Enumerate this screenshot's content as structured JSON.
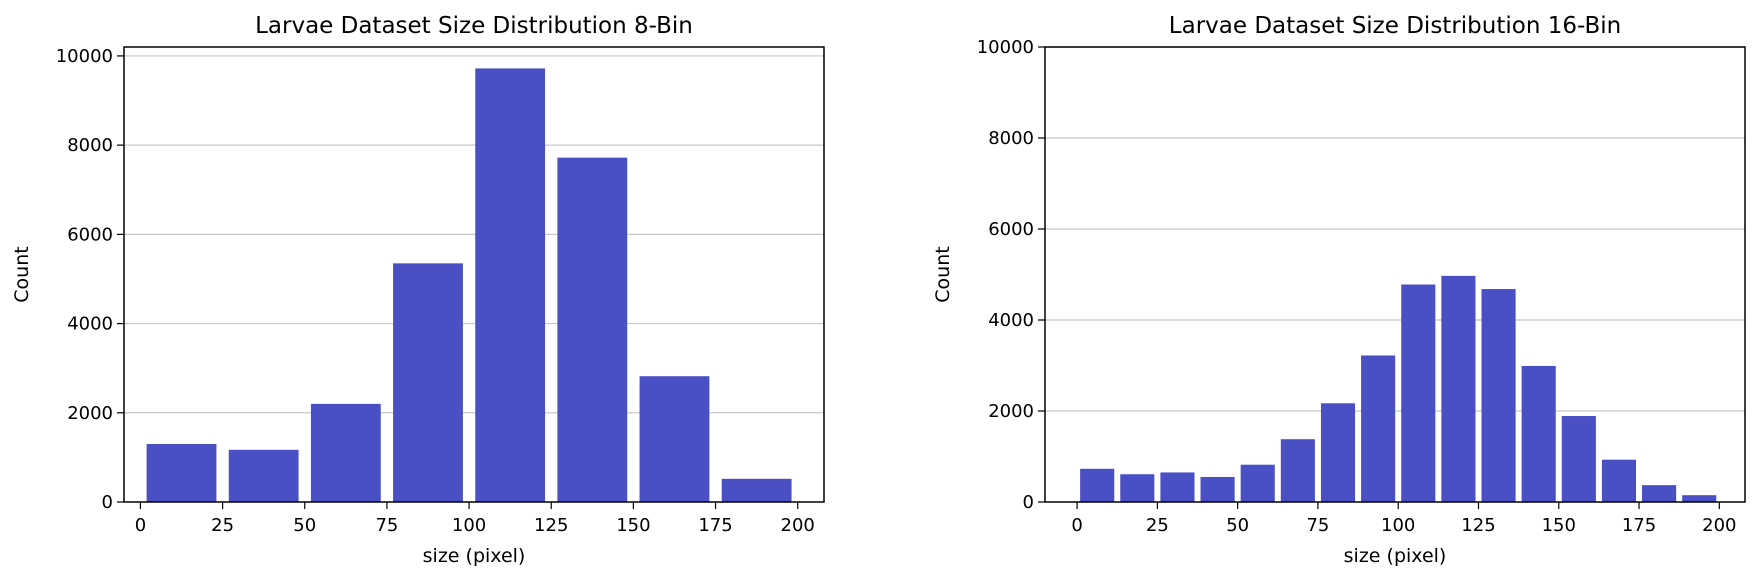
{
  "colors": {
    "bar": "#4b4fc4",
    "grid": "#c8c8c8",
    "axis": "#000000"
  },
  "chart_data": [
    {
      "type": "bar",
      "title": "Larvae Dataset Size Distribution 8-Bin",
      "xlabel": "size (pixel)",
      "ylabel": "Count",
      "xlim": [
        -5,
        208
      ],
      "ylim": [
        0,
        10200
      ],
      "xticks": [
        0,
        25,
        50,
        75,
        100,
        125,
        150,
        175,
        200
      ],
      "yticks": [
        0,
        2000,
        4000,
        6000,
        8000,
        10000
      ],
      "grid": "y",
      "bin_edges": [
        0,
        25,
        50,
        75,
        100,
        125,
        150,
        175,
        200
      ],
      "values": [
        1300,
        1170,
        2200,
        5350,
        9720,
        7720,
        2820,
        520
      ]
    },
    {
      "type": "bar",
      "title": "Larvae Dataset Size Distribution 16-Bin",
      "xlabel": "size (pixel)",
      "ylabel": "Count",
      "xlim": [
        -10,
        208
      ],
      "ylim": [
        0,
        10000
      ],
      "xticks": [
        0,
        25,
        50,
        75,
        100,
        125,
        150,
        175,
        200
      ],
      "yticks": [
        0,
        2000,
        4000,
        6000,
        8000,
        10000
      ],
      "grid": "y",
      "bin_edges": [
        0,
        12.5,
        25,
        37.5,
        50,
        62.5,
        75,
        87.5,
        100,
        112.5,
        125,
        137.5,
        150,
        162.5,
        175,
        187.5,
        200
      ],
      "values": [
        730,
        610,
        650,
        550,
        820,
        1380,
        2170,
        3220,
        4780,
        4970,
        4680,
        2990,
        1890,
        930,
        370,
        150
      ]
    }
  ]
}
